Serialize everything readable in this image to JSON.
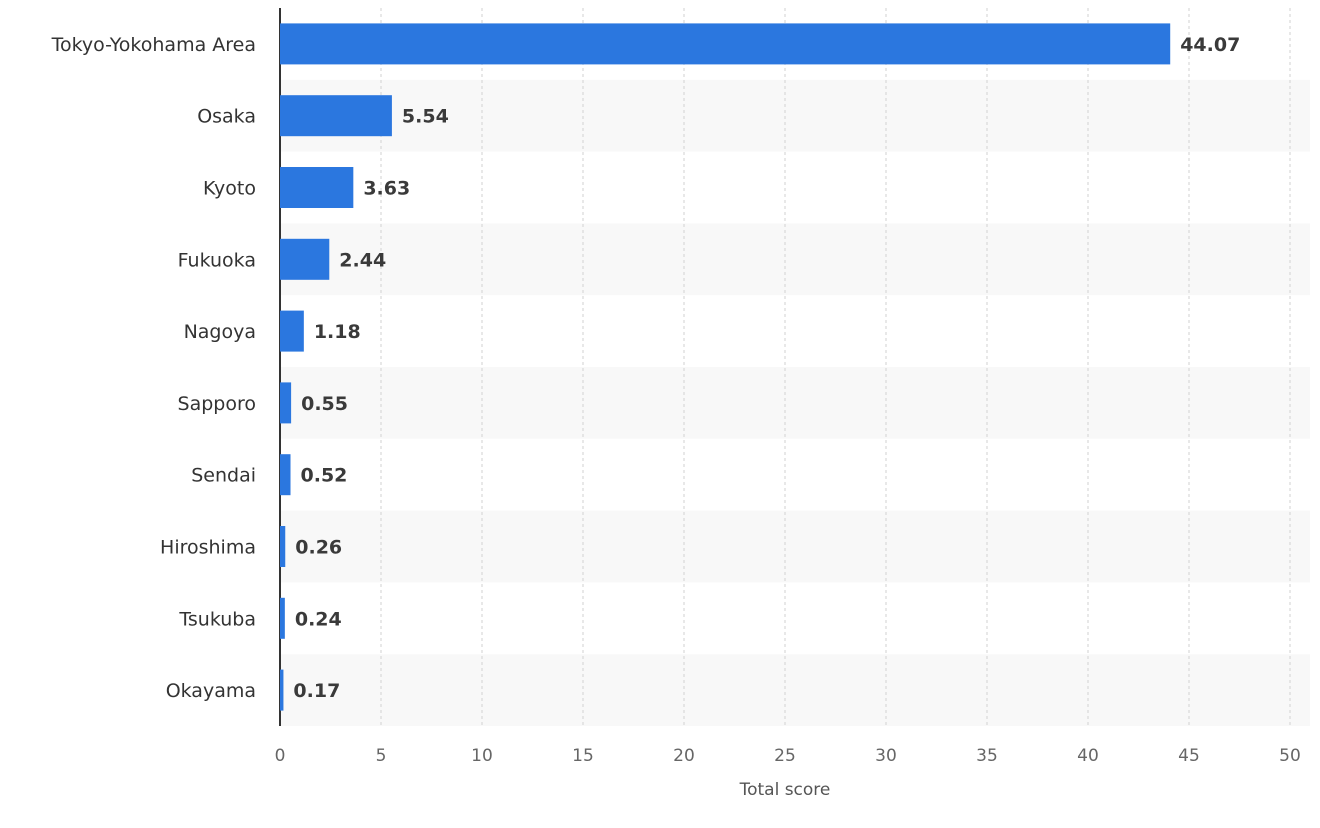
{
  "chart_data": {
    "type": "bar",
    "orientation": "horizontal",
    "categories": [
      "Tokyo-Yokohama Area",
      "Osaka",
      "Kyoto",
      "Fukuoka",
      "Nagoya",
      "Sapporo",
      "Sendai",
      "Hiroshima",
      "Tsukuba",
      "Okayama"
    ],
    "values": [
      44.07,
      5.54,
      3.63,
      2.44,
      1.18,
      0.55,
      0.52,
      0.26,
      0.24,
      0.17
    ],
    "value_labels": [
      "44.07",
      "5.54",
      "3.63",
      "2.44",
      "1.18",
      "0.55",
      "0.52",
      "0.26",
      "0.24",
      "0.17"
    ],
    "title": "",
    "xlabel": "Total score",
    "ylabel": "",
    "xlim": [
      0,
      50
    ],
    "xticks": [
      0,
      5,
      10,
      15,
      20,
      25,
      30,
      35,
      40,
      45,
      50
    ],
    "grid": "vertical dashed",
    "legend": "none",
    "bar_color": "#2b77df",
    "band_color": "#f8f8f8"
  }
}
